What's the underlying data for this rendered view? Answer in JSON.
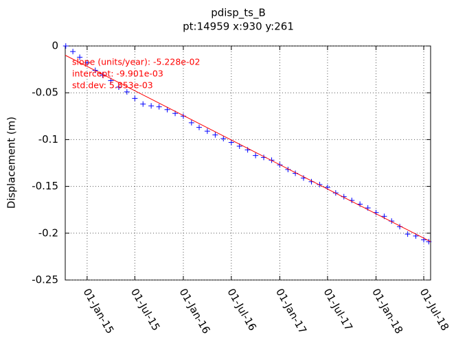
{
  "chart_data": {
    "type": "scatter",
    "title": "pdisp_ts_B",
    "subtitle": "pt:14959  x:930  y:261",
    "y_label": "Displacement (m)",
    "annotations": [
      "slope (units/year):  -5.228e-02",
      "intercept:  -9.901e-03",
      "std.dev:  5.853e-03"
    ],
    "annotation_color": "#ff0000",
    "grid": true,
    "xlim": [
      "2014-10-10",
      "2018-07-27"
    ],
    "xticks": [
      {
        "value": "2015-01-01",
        "label": "01-Jan-15"
      },
      {
        "value": "2015-07-01",
        "label": "01-Jul-15"
      },
      {
        "value": "2016-01-01",
        "label": "01-Jan-16"
      },
      {
        "value": "2016-07-01",
        "label": "01-Jul-16"
      },
      {
        "value": "2017-01-01",
        "label": "01-Jan-17"
      },
      {
        "value": "2017-07-01",
        "label": "01-Jul-17"
      },
      {
        "value": "2018-01-01",
        "label": "01-Jan-18"
      },
      {
        "value": "2018-07-01",
        "label": "01-Jul-18"
      }
    ],
    "ylim": [
      -0.25,
      0
    ],
    "yticks": [
      0,
      -0.05,
      -0.1,
      -0.15,
      -0.2,
      -0.25
    ],
    "series": [
      {
        "color": "#0000ff",
        "marker": "+",
        "x": [
          "2014-10-12",
          "2014-11-08",
          "2014-12-04",
          "2015-01-01",
          "2015-02-01",
          "2015-03-01",
          "2015-04-01",
          "2015-05-01",
          "2015-06-01",
          "2015-07-01",
          "2015-08-01",
          "2015-09-01",
          "2015-10-01",
          "2015-11-01",
          "2015-12-01",
          "2016-01-01",
          "2016-02-01",
          "2016-03-01",
          "2016-04-01",
          "2016-05-01",
          "2016-06-01",
          "2016-07-01",
          "2016-08-01",
          "2016-09-01",
          "2016-10-01",
          "2016-11-01",
          "2016-12-01",
          "2017-01-01",
          "2017-02-01",
          "2017-03-01",
          "2017-04-01",
          "2017-05-01",
          "2017-06-01",
          "2017-07-01",
          "2017-08-01",
          "2017-09-01",
          "2017-10-01",
          "2017-11-01",
          "2017-12-01",
          "2018-01-01",
          "2018-02-01",
          "2018-03-01",
          "2018-04-01",
          "2018-05-01",
          "2018-06-01",
          "2018-07-01",
          "2018-07-20"
        ],
        "values": [
          0,
          -0.006,
          -0.012,
          -0.018,
          -0.026,
          -0.031,
          -0.037,
          -0.044,
          -0.049,
          -0.056,
          -0.062,
          -0.064,
          -0.065,
          -0.068,
          -0.072,
          -0.075,
          -0.082,
          -0.087,
          -0.091,
          -0.095,
          -0.099,
          -0.103,
          -0.107,
          -0.111,
          -0.117,
          -0.119,
          -0.122,
          -0.127,
          -0.132,
          -0.136,
          -0.141,
          -0.145,
          -0.148,
          -0.151,
          -0.157,
          -0.161,
          -0.165,
          -0.169,
          -0.173,
          -0.178,
          -0.182,
          -0.187,
          -0.193,
          -0.201,
          -0.203,
          -0.207,
          -0.209
        ]
      },
      {
        "color": "#ff0000",
        "marker": "line",
        "x": [
          "2014-10-10",
          "2018-07-27"
        ],
        "values": [
          -0.0099,
          -0.209
        ]
      }
    ]
  }
}
